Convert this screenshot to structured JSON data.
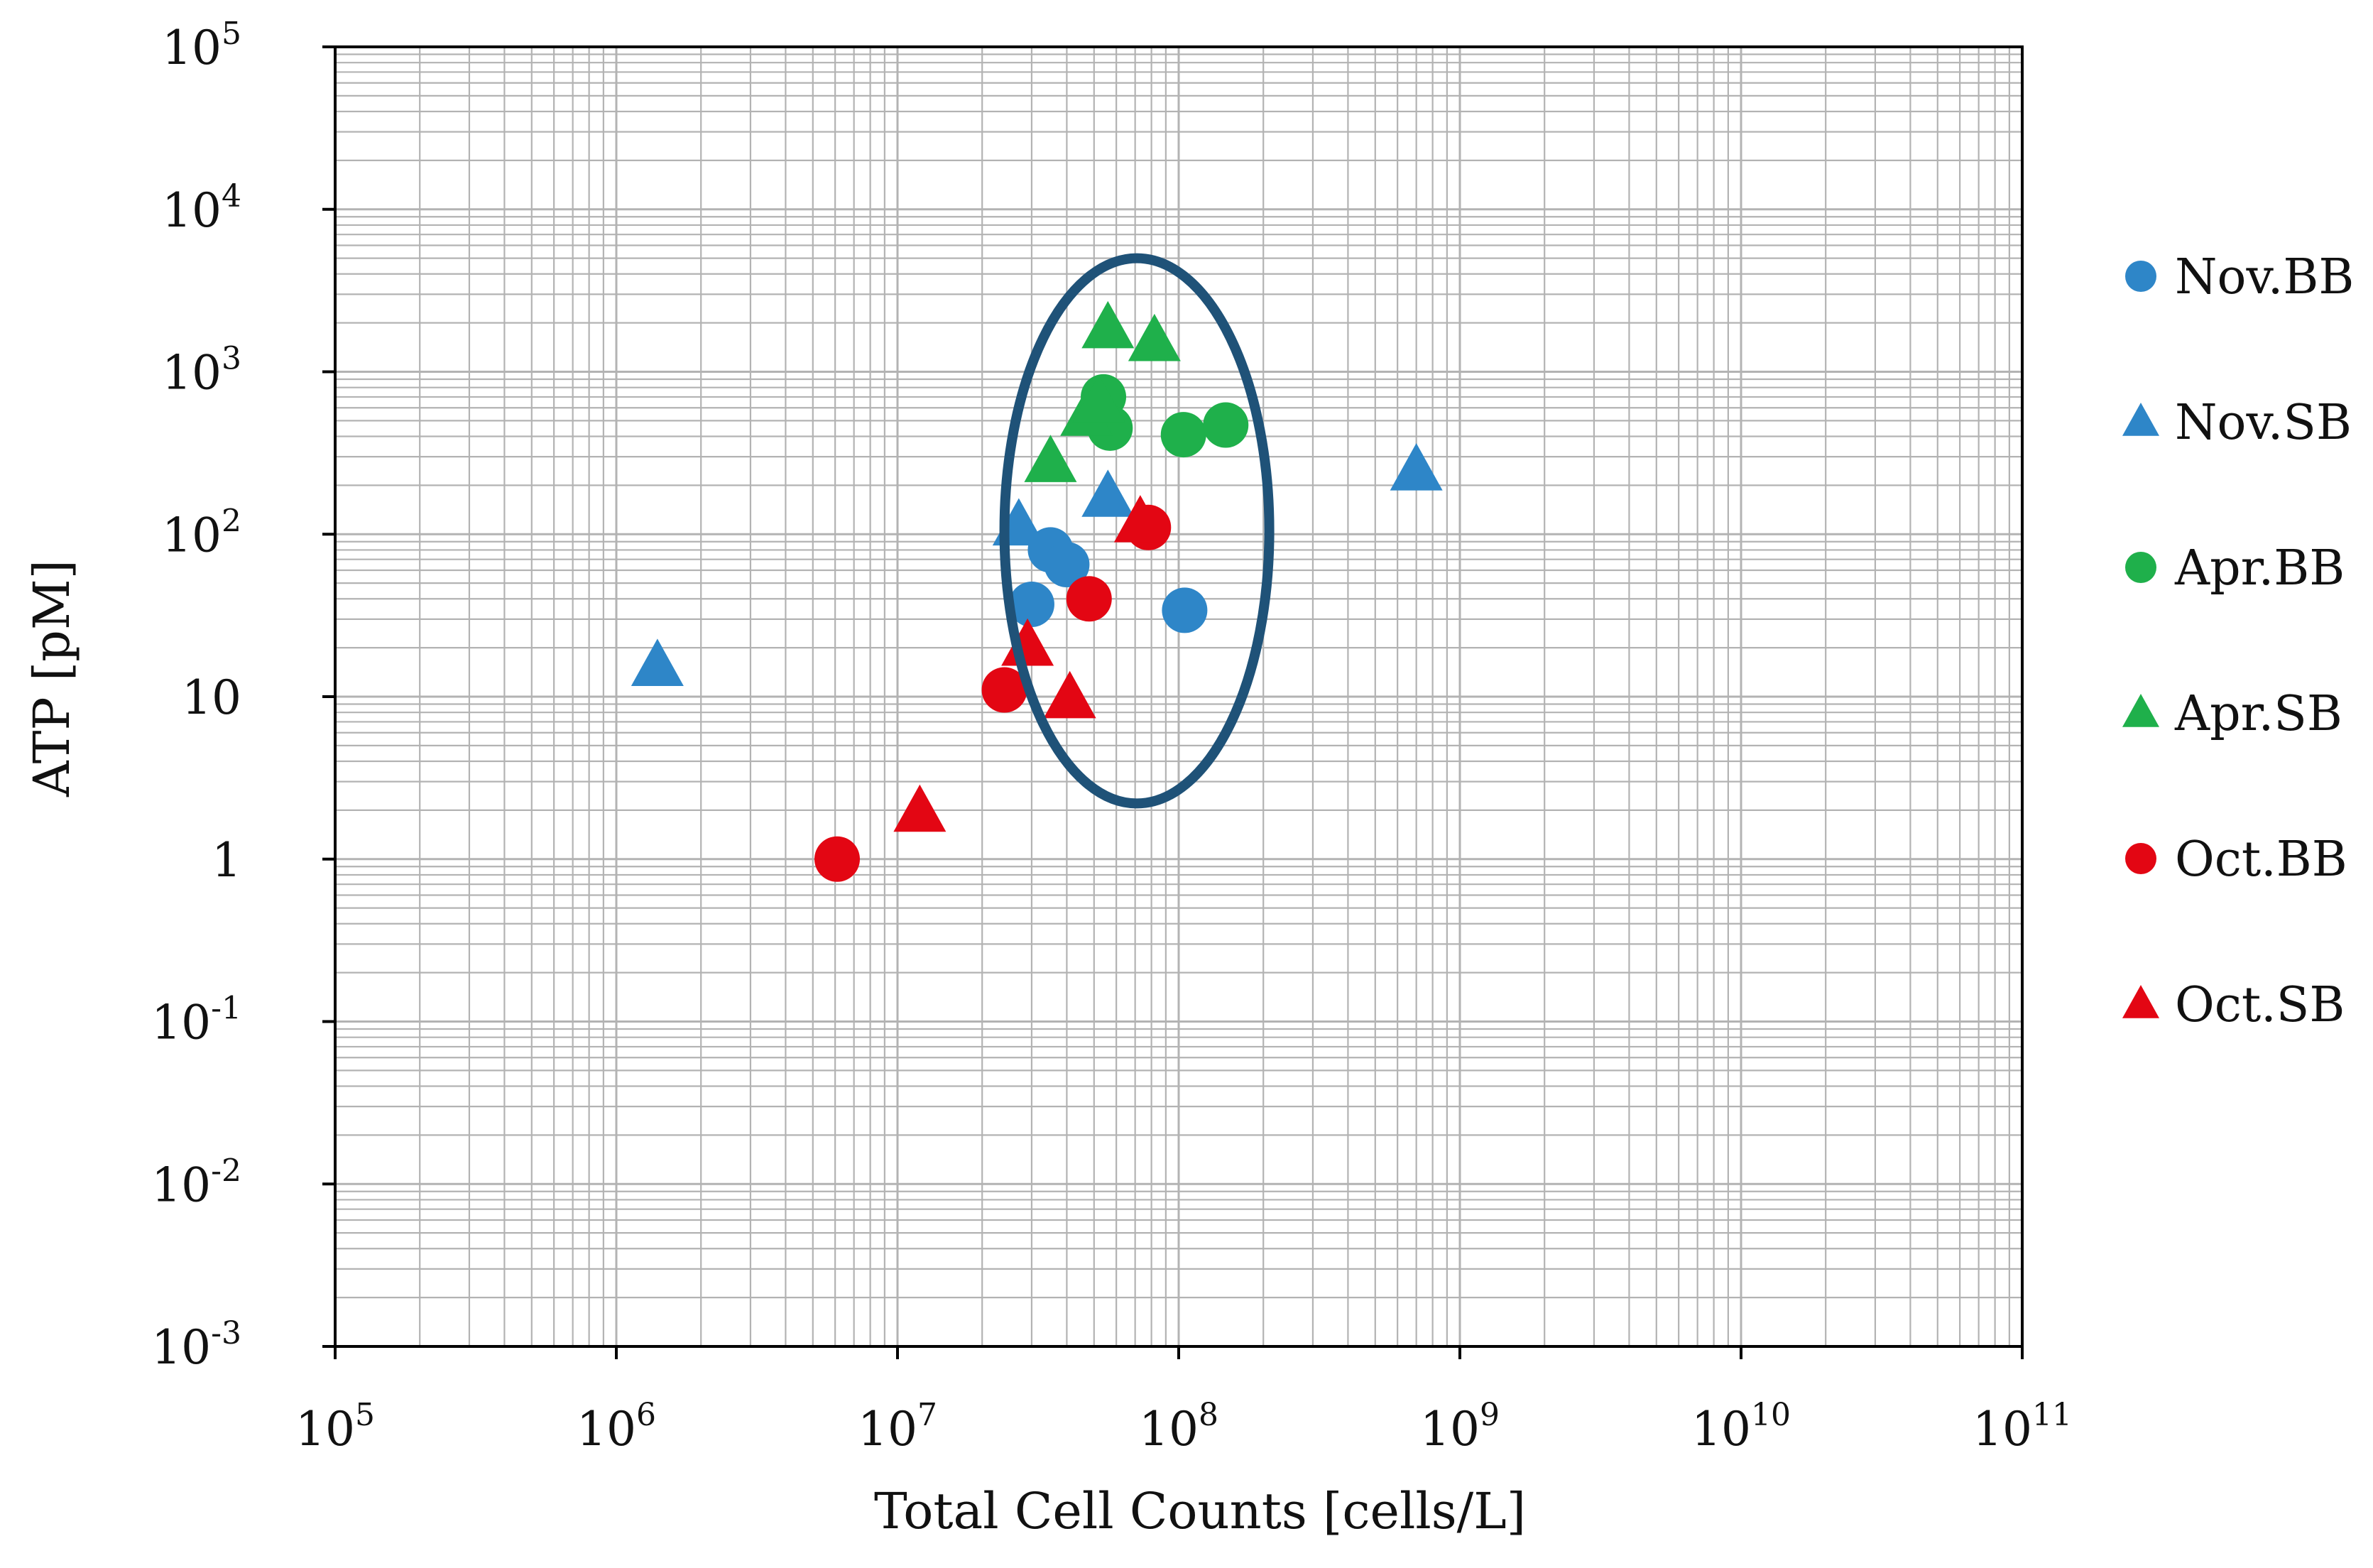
{
  "chart_data": {
    "type": "scatter",
    "title": "",
    "xlabel": "Total Cell Counts [cells/L]",
    "ylabel": "ATP [pM]",
    "xscale": "log",
    "yscale": "log",
    "xlim": [
      100000,
      100000000000
    ],
    "ylim": [
      0.001,
      100000
    ],
    "grid": true,
    "legend_position": "right",
    "x_ticks": [
      {
        "base": "10",
        "exp": "5"
      },
      {
        "base": "10",
        "exp": "6"
      },
      {
        "base": "10",
        "exp": "7"
      },
      {
        "base": "10",
        "exp": "8"
      },
      {
        "base": "10",
        "exp": "9"
      },
      {
        "base": "10",
        "exp": "10"
      },
      {
        "base": "10",
        "exp": "11"
      }
    ],
    "y_ticks": [
      {
        "base": "10",
        "exp": "-3"
      },
      {
        "base": "10",
        "exp": "-2"
      },
      {
        "base": "10",
        "exp": "-1"
      },
      {
        "base": "1",
        "exp": ""
      },
      {
        "base": "10",
        "exp": ""
      },
      {
        "base": "10",
        "exp": "2"
      },
      {
        "base": "10",
        "exp": "3"
      },
      {
        "base": "10",
        "exp": "4"
      },
      {
        "base": "10",
        "exp": "5"
      }
    ],
    "colors": {
      "blue": "#2e86c8",
      "green": "#1fb04b",
      "red": "#e30613",
      "ellipse": "#1f5278",
      "grid": "#b3b3b3",
      "axis": "#000000"
    },
    "series": [
      {
        "name": "Nov.BB",
        "marker": "circle",
        "color": "#2e86c8",
        "points": [
          [
            30000000,
            37
          ],
          [
            35000000,
            80
          ],
          [
            40000000,
            65
          ],
          [
            105000000,
            34
          ]
        ]
      },
      {
        "name": "Nov.SB",
        "marker": "triangle",
        "color": "#2e86c8",
        "points": [
          [
            1400000,
            15
          ],
          [
            27000000,
            110
          ],
          [
            56000000,
            165
          ],
          [
            700000000,
            240
          ]
        ]
      },
      {
        "name": "Apr.BB",
        "marker": "circle",
        "color": "#1fb04b",
        "points": [
          [
            54000000,
            700
          ],
          [
            57000000,
            450
          ],
          [
            104000000,
            410
          ],
          [
            147000000,
            470
          ]
        ]
      },
      {
        "name": "Apr.SB",
        "marker": "triangle",
        "color": "#1fb04b",
        "points": [
          [
            35000000,
            270
          ],
          [
            47000000,
            520
          ],
          [
            52000000,
            630
          ],
          [
            56000000,
            1800
          ],
          [
            82000000,
            1500
          ]
        ]
      },
      {
        "name": "Oct.BB",
        "marker": "circle",
        "color": "#e30613",
        "points": [
          [
            6100000,
            1
          ],
          [
            24000000,
            11
          ],
          [
            48000000,
            40
          ],
          [
            78000000,
            110
          ]
        ]
      },
      {
        "name": "Oct.SB",
        "marker": "triangle",
        "color": "#e30613",
        "points": [
          [
            12000000,
            1.9
          ],
          [
            29000000,
            20
          ],
          [
            41000000,
            9.5
          ],
          [
            73000000,
            115
          ]
        ]
      }
    ],
    "annotation": {
      "type": "ellipse",
      "center": [
        57000000,
        100
      ],
      "x_range": [
        24000000,
        210000000
      ],
      "y_range": [
        2.2,
        5000
      ]
    }
  }
}
